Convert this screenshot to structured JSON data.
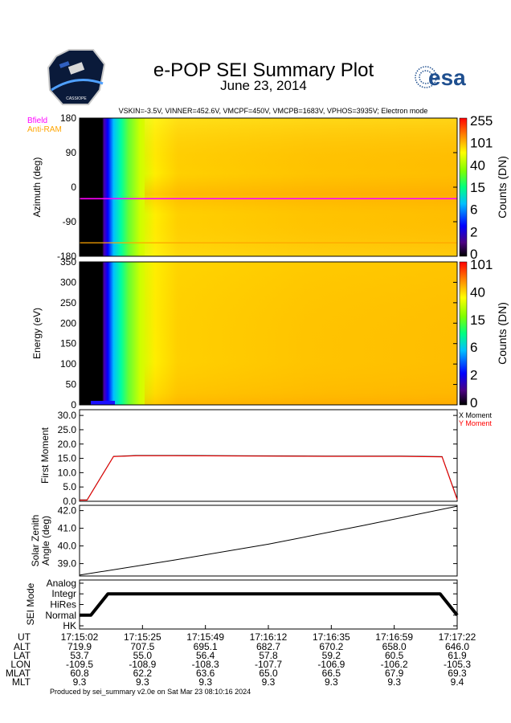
{
  "header": {
    "title": "e-POP SEI Summary Plot",
    "date": "June 23, 2014",
    "params": "VSKIN=-3.5V, VINNER=452.6V, VMCPF=450V, VMCPB=1683V, VPHOS=3935V; Electron mode",
    "esa_logo_text": "esa",
    "cassiope_logo_text": "CASSIOPE"
  },
  "colors": {
    "magenta": "#ff00ff",
    "orange": "#ffa500",
    "red": "#ff0000",
    "heat_fill": "#ffc000"
  },
  "chart_data": [
    {
      "type": "heatmap",
      "id": "azimuth",
      "legend_bfield": "Bfield",
      "legend_antiram": "Anti-RAM",
      "ylabel": "Azimuth (deg)",
      "ylim": [
        -180,
        180
      ],
      "yticks": [
        "180",
        "90",
        "0",
        "-90",
        "-180"
      ],
      "yticks_values": [
        180,
        90,
        0,
        -90,
        -180
      ],
      "bfield_azimuth": -30,
      "antiram_azimuth": -145,
      "colorbar_label": "Counts (DN)",
      "colorbar_ticks": [
        "255",
        "101",
        "40",
        "15",
        "6",
        "2",
        "0"
      ]
    },
    {
      "type": "heatmap",
      "id": "energy",
      "ylabel": "Energy (eV)",
      "ylim": [
        0,
        350
      ],
      "yticks": [
        "350",
        "300",
        "250",
        "200",
        "150",
        "100",
        "50",
        "0"
      ],
      "yticks_values": [
        350,
        300,
        250,
        200,
        150,
        100,
        50,
        0
      ],
      "colorbar_label": "Counts (DN)",
      "colorbar_ticks": [
        "101",
        "40",
        "15",
        "6",
        "2",
        "0"
      ]
    },
    {
      "type": "line",
      "id": "moment",
      "ylabel": "First Moment",
      "ylim": [
        0,
        32
      ],
      "yticks": [
        "30.0",
        "25.0",
        "20.0",
        "15.0",
        "10.0",
        "5.0",
        "0.0"
      ],
      "yticks_values": [
        30,
        25,
        20,
        15,
        10,
        5,
        0
      ],
      "legend": [
        "X Moment",
        "Y Moment"
      ],
      "x": [
        0,
        0.02,
        0.09,
        0.15,
        0.25,
        0.45,
        0.65,
        0.85,
        0.96,
        1.0
      ],
      "series": [
        {
          "name": "X Moment",
          "values": [
            0.5,
            0.5,
            15.7,
            16.0,
            16.0,
            15.9,
            15.8,
            15.8,
            15.6,
            0.8
          ]
        },
        {
          "name": "Y Moment",
          "values": [
            0.4,
            0.4,
            15.6,
            15.9,
            15.9,
            15.8,
            15.7,
            15.7,
            15.5,
            0.6
          ]
        }
      ]
    },
    {
      "type": "line",
      "id": "sza",
      "ylabel": "Solar Zenith Angle (deg)",
      "ylabel_lines": [
        "Solar Zenith",
        "Angle (deg)"
      ],
      "ylim": [
        38.3,
        42.3
      ],
      "yticks": [
        "42.0",
        "41.0",
        "40.0",
        "39.0"
      ],
      "yticks_values": [
        42,
        41,
        40,
        39
      ],
      "x": [
        0,
        0.25,
        0.5,
        0.75,
        1.0
      ],
      "values": [
        38.35,
        39.2,
        40.1,
        41.15,
        42.25
      ]
    },
    {
      "type": "line",
      "id": "mode",
      "ylabel": "SEI Mode",
      "ylim": [
        -0.3,
        4.3
      ],
      "yticks": [
        "Analog",
        "Integr",
        "HiRes",
        "Normal",
        "HK"
      ],
      "yticks_values": [
        4,
        3,
        2,
        1,
        0
      ],
      "x": [
        0,
        0.03,
        0.075,
        0.955,
        1.0
      ],
      "values": [
        1,
        1,
        3,
        3,
        1
      ]
    }
  ],
  "time_axis": {
    "labels": [
      "UT",
      "ALT",
      "LAT",
      "LON",
      "MLAT",
      "MLT"
    ],
    "ticks": [
      {
        "ut": "17:15:02",
        "alt": "719.9",
        "lat": "53.7",
        "lon": "-109.5",
        "mlat": "60.8",
        "mlt": "9.3"
      },
      {
        "ut": "17:15:25",
        "alt": "707.5",
        "lat": "55.0",
        "lon": "-108.9",
        "mlat": "62.2",
        "mlt": "9.3"
      },
      {
        "ut": "17:15:49",
        "alt": "695.1",
        "lat": "56.4",
        "lon": "-108.3",
        "mlat": "63.6",
        "mlt": "9.3"
      },
      {
        "ut": "17:16:12",
        "alt": "682.7",
        "lat": "57.8",
        "lon": "-107.7",
        "mlat": "65.0",
        "mlt": "9.3"
      },
      {
        "ut": "17:16:35",
        "alt": "670.2",
        "lat": "59.2",
        "lon": "-106.9",
        "mlat": "66.5",
        "mlt": "9.3"
      },
      {
        "ut": "17:16:59",
        "alt": "658.0",
        "lat": "60.5",
        "lon": "-106.2",
        "mlat": "67.9",
        "mlt": "9.3"
      },
      {
        "ut": "17:17:22",
        "alt": "646.0",
        "lat": "61.9",
        "lon": "-105.3",
        "mlat": "69.3",
        "mlt": "9.4"
      }
    ]
  },
  "footer": "Produced by sei_summary v2.0e on Sat Mar 23 08:10:16 2024"
}
